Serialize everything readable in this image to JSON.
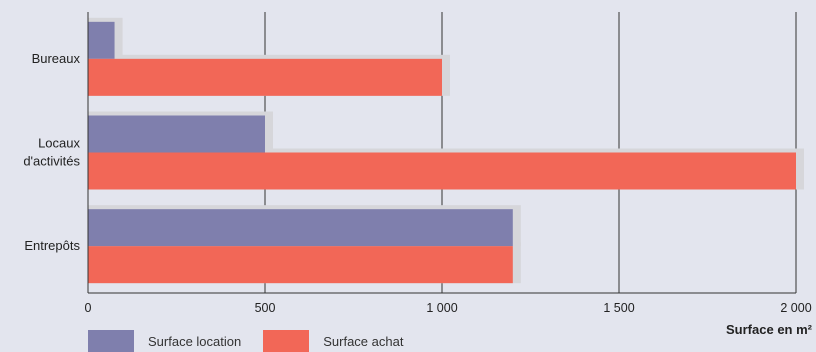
{
  "chart_data": {
    "type": "bar",
    "orientation": "horizontal",
    "categories": [
      [
        "Bureaux"
      ],
      [
        "Locaux",
        "d'activités"
      ],
      [
        "Entrepôts"
      ]
    ],
    "series": [
      {
        "name": "Surface location",
        "color": "#7f7fad",
        "values": [
          75,
          500,
          1200
        ]
      },
      {
        "name": "Surface achat",
        "color": "#f26757",
        "values": [
          1000,
          2000,
          1200
        ]
      }
    ],
    "xlabel": "Surface en m²",
    "xlim": [
      0,
      2000
    ],
    "xticks": [
      0,
      500,
      1000,
      1500,
      2000
    ],
    "xtick_labels": [
      "0",
      "500",
      "1 000",
      "1 500",
      "2 000"
    ],
    "grid": "vertical",
    "legend_position": "bottom-left"
  }
}
